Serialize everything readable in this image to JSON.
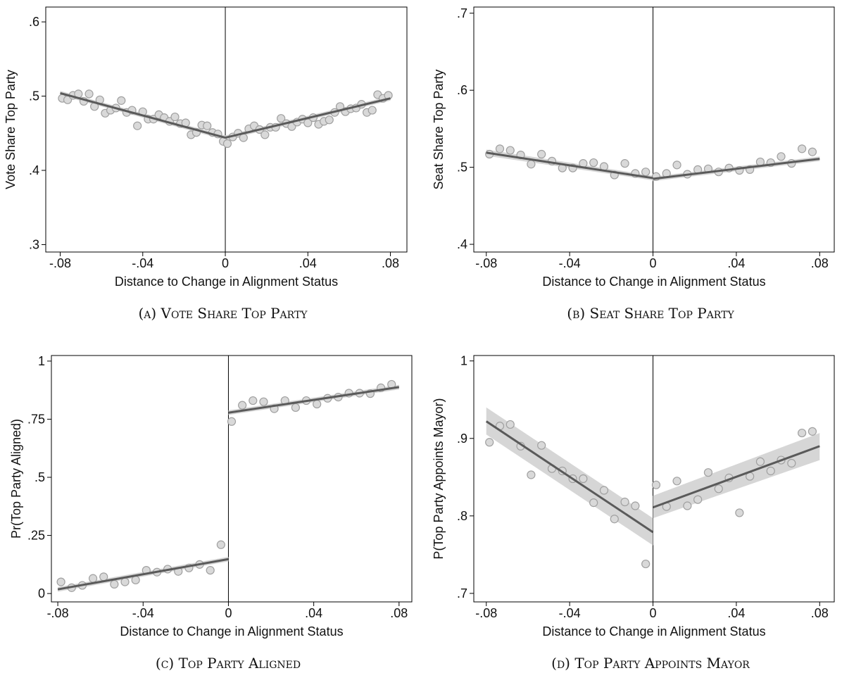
{
  "chart_data": [
    {
      "type": "scatter",
      "caption": "(a) Vote Share Top Party",
      "xlabel": "Distance to Change in Alignment Status",
      "ylabel": "Vote Share Top Party",
      "xlim": [
        -0.087,
        0.088
      ],
      "ylim": [
        0.29,
        0.62
      ],
      "xticks": [
        {
          "value": -0.08,
          "label": "-.08"
        },
        {
          "value": -0.04,
          "label": "-.04"
        },
        0,
        {
          "value": 0.04,
          "label": ".04"
        },
        {
          "value": 0.08,
          "label": ".08"
        }
      ],
      "yticks": [
        {
          "value": 0.3,
          "label": ".3"
        },
        {
          "value": 0.4,
          "label": ".4"
        },
        {
          "value": 0.5,
          "label": ".5"
        },
        {
          "value": 0.6,
          "label": ".6"
        }
      ],
      "cutoff": 0,
      "point_color": "#d9d9d9",
      "line_color": "#5a5a5a",
      "band_color": "#d6d6d6",
      "points": {
        "x": [
          -0.079,
          -0.0764,
          -0.0738,
          -0.0712,
          -0.0686,
          -0.066,
          -0.0634,
          -0.0608,
          -0.0582,
          -0.0556,
          -0.053,
          -0.0504,
          -0.0478,
          -0.0452,
          -0.0426,
          -0.04,
          -0.0374,
          -0.0348,
          -0.0322,
          -0.0296,
          -0.027,
          -0.0244,
          -0.0218,
          -0.0192,
          -0.0166,
          -0.014,
          -0.0114,
          -0.0088,
          -0.0062,
          -0.0036,
          -0.001,
          0.001,
          0.0036,
          0.0062,
          0.0088,
          0.0114,
          0.014,
          0.0166,
          0.0192,
          0.0218,
          0.0244,
          0.027,
          0.0296,
          0.0322,
          0.0348,
          0.0374,
          0.04,
          0.0426,
          0.0452,
          0.0478,
          0.0504,
          0.053,
          0.0556,
          0.0582,
          0.0608,
          0.0634,
          0.066,
          0.0686,
          0.0712,
          0.0738,
          0.0764,
          0.079
        ],
        "values": [
          0.497,
          0.495,
          0.501,
          0.503,
          0.493,
          0.503,
          0.486,
          0.495,
          0.477,
          0.481,
          0.484,
          0.494,
          0.478,
          0.481,
          0.46,
          0.479,
          0.469,
          0.469,
          0.475,
          0.471,
          0.466,
          0.472,
          0.463,
          0.464,
          0.448,
          0.451,
          0.461,
          0.46,
          0.451,
          0.449,
          0.439,
          0.436,
          0.445,
          0.45,
          0.444,
          0.456,
          0.46,
          0.455,
          0.448,
          0.458,
          0.458,
          0.47,
          0.463,
          0.459,
          0.465,
          0.469,
          0.464,
          0.471,
          0.462,
          0.466,
          0.468,
          0.478,
          0.486,
          0.479,
          0.483,
          0.484,
          0.489,
          0.478,
          0.481,
          0.502,
          0.497,
          0.501
        ]
      },
      "fits": [
        {
          "x": [
            -0.08,
            0
          ],
          "values": [
            0.504,
            0.444
          ],
          "lower": [
            0.501,
            0.441
          ],
          "upper": [
            0.507,
            0.447
          ]
        },
        {
          "x": [
            0,
            0.08
          ],
          "values": [
            0.444,
            0.497
          ],
          "lower": [
            0.441,
            0.494
          ],
          "upper": [
            0.447,
            0.5
          ]
        }
      ]
    },
    {
      "type": "scatter",
      "caption": "(b) Seat Share Top Party",
      "xlabel": "Distance to Change in Alignment Status",
      "ylabel": "Seat Share Top Party",
      "xlim": [
        -0.086,
        0.087
      ],
      "ylim": [
        0.39,
        0.708
      ],
      "xticks": [
        {
          "value": -0.08,
          "label": "-.08"
        },
        {
          "value": -0.04,
          "label": "-.04"
        },
        0,
        {
          "value": 0.04,
          "label": ".04"
        },
        {
          "value": 0.08,
          "label": ".08"
        }
      ],
      "yticks": [
        {
          "value": 0.4,
          "label": ".4"
        },
        {
          "value": 0.5,
          "label": ".5"
        },
        {
          "value": 0.6,
          "label": ".6"
        },
        {
          "value": 0.7,
          "label": ".7"
        }
      ],
      "cutoff": 0,
      "point_color": "#d9d9d9",
      "line_color": "#5a5a5a",
      "band_color": "#d6d6d6",
      "points": {
        "x": [
          -0.0785,
          -0.0735,
          -0.0685,
          -0.0635,
          -0.0585,
          -0.0535,
          -0.0485,
          -0.0435,
          -0.0385,
          -0.0335,
          -0.0285,
          -0.0235,
          -0.0185,
          -0.0135,
          -0.0085,
          -0.0035,
          0.0015,
          0.0065,
          0.0115,
          0.0165,
          0.0215,
          0.0265,
          0.0315,
          0.0365,
          0.0415,
          0.0465,
          0.0515,
          0.0565,
          0.0615,
          0.0665,
          0.0715,
          0.0765
        ],
        "values": [
          0.517,
          0.524,
          0.522,
          0.516,
          0.504,
          0.517,
          0.508,
          0.499,
          0.499,
          0.505,
          0.506,
          0.501,
          0.49,
          0.505,
          0.492,
          0.494,
          0.488,
          0.492,
          0.503,
          0.491,
          0.497,
          0.498,
          0.494,
          0.499,
          0.496,
          0.497,
          0.507,
          0.506,
          0.514,
          0.505,
          0.524,
          0.52
        ]
      },
      "fits": [
        {
          "x": [
            -0.08,
            0
          ],
          "values": [
            0.519,
            0.486
          ],
          "lower": [
            0.515,
            0.483
          ],
          "upper": [
            0.523,
            0.489
          ]
        },
        {
          "x": [
            0,
            0.08
          ],
          "values": [
            0.485,
            0.511
          ],
          "lower": [
            0.482,
            0.508
          ],
          "upper": [
            0.488,
            0.514
          ]
        }
      ]
    },
    {
      "type": "scatter",
      "caption": "(c) Top Party Aligned",
      "xlabel": "Distance to Change in Alignment Status",
      "ylabel": "Pr(Top Party Aligned)",
      "xlim": [
        -0.083,
        0.086
      ],
      "ylim": [
        -0.036,
        1.024
      ],
      "xticks": [
        {
          "value": -0.08,
          "label": "-.08"
        },
        {
          "value": -0.04,
          "label": "-.04"
        },
        0,
        {
          "value": 0.04,
          "label": ".04"
        },
        {
          "value": 0.08,
          "label": ".08"
        }
      ],
      "yticks": [
        0,
        {
          "value": 0.25,
          "label": ".25"
        },
        {
          "value": 0.5,
          "label": ".5"
        },
        {
          "value": 0.75,
          "label": ".75"
        },
        1
      ],
      "cutoff": 0,
      "point_color": "#d9d9d9",
      "line_color": "#5a5a5a",
      "band_color": "#d6d6d6",
      "points": {
        "x": [
          -0.0785,
          -0.0735,
          -0.0685,
          -0.0635,
          -0.0585,
          -0.0535,
          -0.0485,
          -0.0435,
          -0.0385,
          -0.0335,
          -0.0285,
          -0.0235,
          -0.0185,
          -0.0135,
          -0.0085,
          -0.0035,
          0.0015,
          0.0065,
          0.0115,
          0.0165,
          0.0215,
          0.0265,
          0.0315,
          0.0365,
          0.0415,
          0.0465,
          0.0515,
          0.0565,
          0.0615,
          0.0665,
          0.0715,
          0.0765
        ],
        "values": [
          0.05,
          0.025,
          0.035,
          0.065,
          0.072,
          0.04,
          0.05,
          0.058,
          0.1,
          0.092,
          0.105,
          0.095,
          0.11,
          0.125,
          0.1,
          0.21,
          0.74,
          0.81,
          0.83,
          0.825,
          0.795,
          0.83,
          0.8,
          0.83,
          0.815,
          0.84,
          0.845,
          0.862,
          0.862,
          0.86,
          0.885,
          0.9
        ]
      },
      "fits": [
        {
          "x": [
            -0.08,
            0
          ],
          "values": [
            0.018,
            0.148
          ],
          "lower": [
            0.008,
            0.138
          ],
          "upper": [
            0.028,
            0.158
          ]
        },
        {
          "x": [
            0,
            0.08
          ],
          "values": [
            0.778,
            0.888
          ],
          "lower": [
            0.768,
            0.878
          ],
          "upper": [
            0.788,
            0.898
          ]
        }
      ]
    },
    {
      "type": "scatter",
      "caption": "(d) Top Party Appoints Mayor",
      "xlabel": "Distance to Change in Alignment Status",
      "ylabel": "P(Top Party Appoints Mayor)",
      "xlim": [
        -0.086,
        0.087
      ],
      "ylim": [
        0.689,
        1.007
      ],
      "xticks": [
        {
          "value": -0.08,
          "label": "-.08"
        },
        {
          "value": -0.04,
          "label": "-.04"
        },
        0,
        {
          "value": 0.04,
          "label": ".04"
        },
        {
          "value": 0.08,
          "label": ".08"
        }
      ],
      "yticks": [
        {
          "value": 0.7,
          "label": ".7"
        },
        {
          "value": 0.8,
          "label": ".8"
        },
        {
          "value": 0.9,
          "label": ".9"
        },
        1
      ],
      "cutoff": 0,
      "point_color": "#d9d9d9",
      "line_color": "#5a5a5a",
      "band_color": "#d6d6d6",
      "points": {
        "x": [
          -0.0785,
          -0.0735,
          -0.0685,
          -0.0635,
          -0.0585,
          -0.0535,
          -0.0485,
          -0.0435,
          -0.0385,
          -0.0335,
          -0.0285,
          -0.0235,
          -0.0185,
          -0.0135,
          -0.0085,
          -0.0035,
          0.0015,
          0.0065,
          0.0115,
          0.0165,
          0.0215,
          0.0265,
          0.0315,
          0.0365,
          0.0415,
          0.0465,
          0.0515,
          0.0565,
          0.0615,
          0.0665,
          0.0715,
          0.0765
        ],
        "values": [
          0.895,
          0.916,
          0.918,
          0.89,
          0.853,
          0.891,
          0.861,
          0.858,
          0.848,
          0.848,
          0.817,
          0.833,
          0.796,
          0.818,
          0.813,
          0.738,
          0.84,
          0.812,
          0.845,
          0.813,
          0.821,
          0.856,
          0.835,
          0.849,
          0.804,
          0.851,
          0.87,
          0.858,
          0.872,
          0.868,
          0.907,
          0.909
        ]
      },
      "fits": [
        {
          "x": [
            -0.08,
            0
          ],
          "values": [
            0.922,
            0.779
          ],
          "lower": [
            0.905,
            0.762
          ],
          "upper": [
            0.94,
            0.797
          ]
        },
        {
          "x": [
            0,
            0.08
          ],
          "values": [
            0.811,
            0.89
          ],
          "lower": [
            0.797,
            0.872
          ],
          "upper": [
            0.826,
            0.907
          ]
        }
      ]
    }
  ]
}
